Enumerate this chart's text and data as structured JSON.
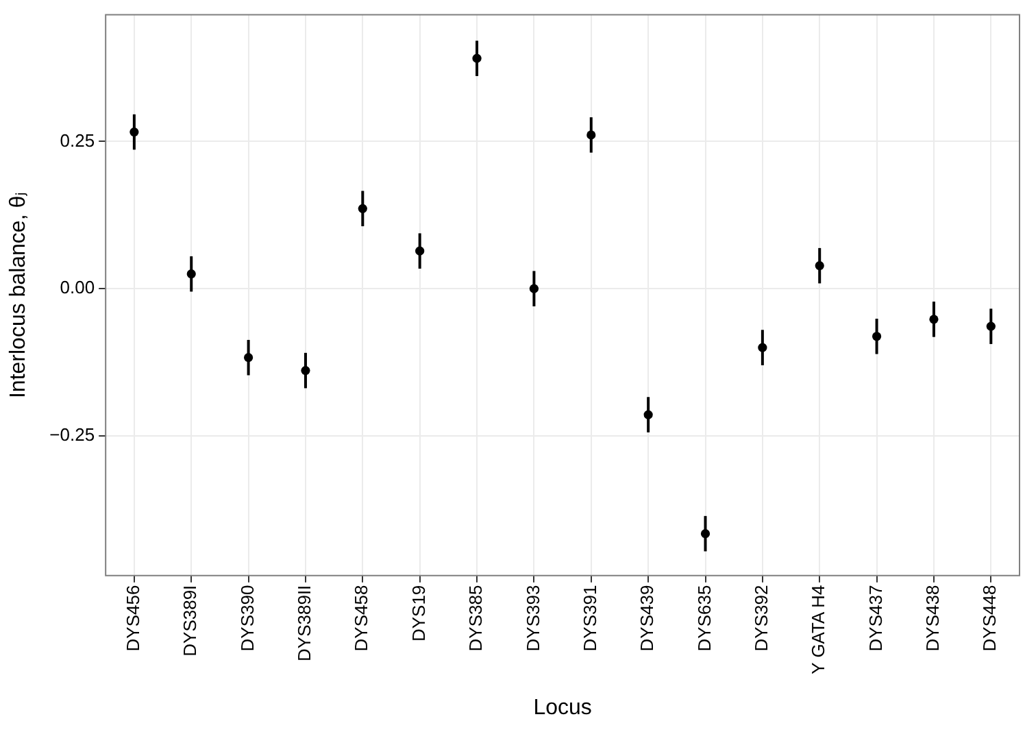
{
  "chart_data": {
    "type": "scatter",
    "xlabel": "Locus",
    "ylabel": "Interlocus balance, θⱼ",
    "categories": [
      "DYS456",
      "DYS389I",
      "DYS390",
      "DYS389II",
      "DYS458",
      "DYS19",
      "DYS385",
      "DYS393",
      "DYS391",
      "DYS439",
      "DYS635",
      "DYS392",
      "Y GATA H4",
      "DYS437",
      "DYS438",
      "DYS448"
    ],
    "series": [
      {
        "color": "#000000",
        "values": [
          0.266,
          0.025,
          -0.117,
          -0.139,
          0.136,
          0.064,
          0.391,
          0.0,
          0.261,
          -0.214,
          -0.416,
          -0.1,
          0.039,
          -0.081,
          -0.052,
          -0.064
        ],
        "errors": [
          0.03,
          0.03,
          0.03,
          0.03,
          0.03,
          0.03,
          0.03,
          0.03,
          0.03,
          0.03,
          0.03,
          0.03,
          0.03,
          0.03,
          0.03,
          0.03
        ]
      }
    ],
    "ylim": [
      -0.487,
      0.465
    ],
    "yticks": [
      {
        "value": 0.25,
        "label": "0.25"
      },
      {
        "value": 0,
        "label": "0.00"
      },
      {
        "value": -0.25,
        "label": "−0.25"
      }
    ],
    "grid": true,
    "marker": "circle",
    "legend": false
  }
}
